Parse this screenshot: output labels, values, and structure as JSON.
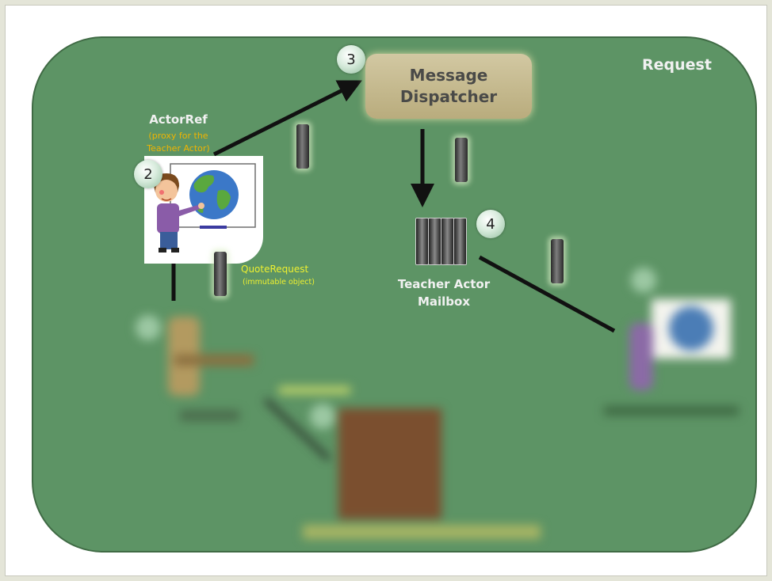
{
  "diagram": {
    "title": "Request",
    "dispatcher": {
      "line1": "Message",
      "line2": "Dispatcher"
    },
    "actor_ref": {
      "title": "ActorRef",
      "note_line1": "(proxy for the",
      "note_line2": "Teacher Actor)"
    },
    "quote_request": {
      "title": "QuoteRequest",
      "note": "(immutable object)"
    },
    "mailbox": {
      "line1": "Teacher Actor",
      "line2": "Mailbox"
    },
    "steps": [
      "2",
      "3",
      "4"
    ],
    "colors": {
      "board": "#5d9465",
      "dispatcher": "#c9bf97",
      "actor_ref_note": "#f0b400",
      "quote_request": "#eef030"
    }
  }
}
